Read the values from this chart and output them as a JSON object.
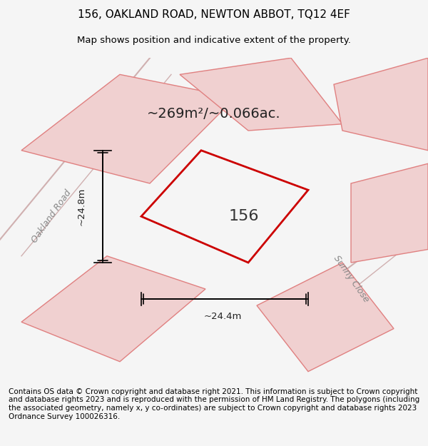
{
  "title_line1": "156, OAKLAND ROAD, NEWTON ABBOT, TQ12 4EF",
  "title_line2": "Map shows position and indicative extent of the property.",
  "area_text": "~269m²/~0.066ac.",
  "property_number": "156",
  "dim_horizontal": "~24.4m",
  "dim_vertical": "~24.8m",
  "road_label1": "Oakland Road",
  "road_label2": "Sunny Close",
  "footer_text": "Contains OS data © Crown copyright and database right 2021. This information is subject to Crown copyright and database rights 2023 and is reproduced with the permission of HM Land Registry. The polygons (including the associated geometry, namely x, y co-ordinates) are subject to Crown copyright and database rights 2023 Ordnance Survey 100026316.",
  "bg_color": "#f5f5f5",
  "map_bg_color": "#ffffff",
  "main_polygon_color": "#cc0000",
  "neighbor_fill": "#f0d0d0",
  "neighbor_edge": "#e08080",
  "title_fontsize": 11,
  "subtitle_fontsize": 9.5,
  "footer_fontsize": 7.5
}
